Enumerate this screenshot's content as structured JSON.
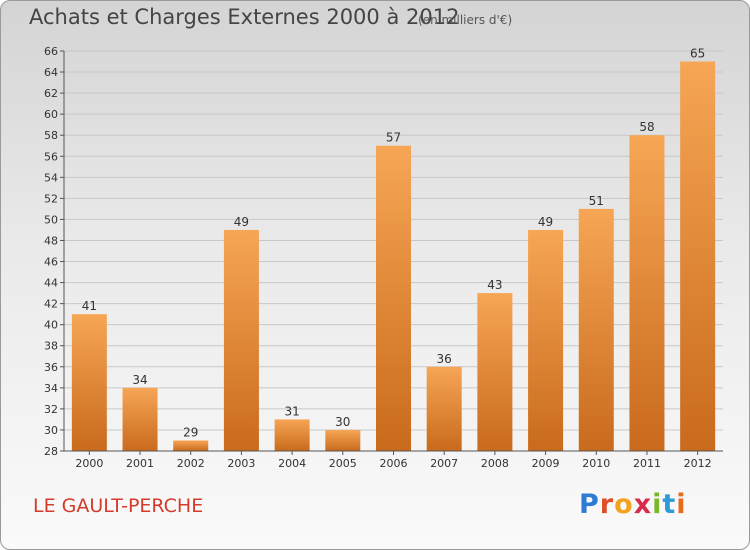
{
  "header": {
    "title": "Achats et Charges Externes 2000 à 2012",
    "subtitle": "(en milliers d'€)"
  },
  "footer": {
    "town": "LE GAULT-PERCHE",
    "logo": [
      "P",
      "r",
      "o",
      "x",
      "i",
      "t",
      "i"
    ],
    "logo_colors": [
      "#2e7bd6",
      "#e04d2a",
      "#f2a31b",
      "#d92b4b",
      "#7ab829",
      "#2e9bd6",
      "#e86c1a"
    ]
  },
  "chart_data": {
    "type": "bar",
    "title": "Achats et Charges Externes 2000 à 2012",
    "subtitle": "(en milliers d'€)",
    "categories": [
      "2000",
      "2001",
      "2002",
      "2003",
      "2004",
      "2005",
      "2006",
      "2007",
      "2008",
      "2009",
      "2010",
      "2011",
      "2012"
    ],
    "values": [
      41,
      34,
      29,
      49,
      31,
      30,
      57,
      36,
      43,
      49,
      51,
      58,
      65
    ],
    "ylim": [
      28,
      66
    ],
    "yticks": [
      28,
      30,
      32,
      34,
      36,
      38,
      40,
      42,
      44,
      46,
      48,
      50,
      52,
      54,
      56,
      58,
      60,
      62,
      64,
      66
    ],
    "grid": true,
    "bar_color_light": "#f6a655",
    "bar_color_dark": "#c96a1c"
  }
}
